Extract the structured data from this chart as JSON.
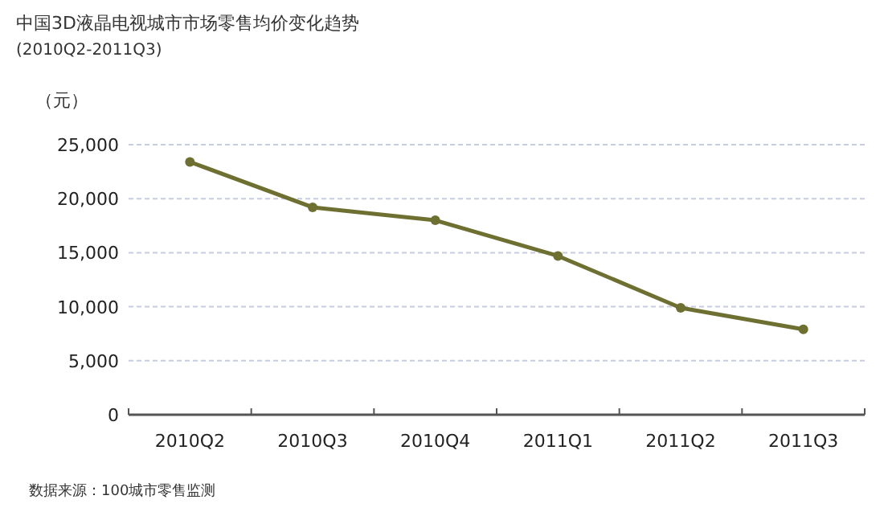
{
  "chart_data": {
    "type": "line",
    "title": "中国3D液晶电视城市市场零售均价变化趋势",
    "subtitle": "(2010Q2-2011Q3)",
    "ylabel": "（元）",
    "categories": [
      "2010Q2",
      "2010Q3",
      "2010Q4",
      "2011Q1",
      "2011Q2",
      "2011Q3"
    ],
    "series": [
      {
        "color": "#6e7031",
        "values": [
          23400,
          19200,
          18000,
          14700,
          9900,
          7900
        ]
      }
    ],
    "ylim": [
      0,
      25000
    ],
    "yticks": [
      {
        "value": 0,
        "label": "0"
      },
      {
        "value": 5000,
        "label": "5,000"
      },
      {
        "value": 10000,
        "label": "10,000"
      },
      {
        "value": 15000,
        "label": "15,000"
      },
      {
        "value": 20000,
        "label": "20,000"
      },
      {
        "value": 25000,
        "label": "25,000"
      }
    ],
    "grid": "y",
    "marker": "circle",
    "line_style": "solid",
    "annotations": [
      "数据来源：100城市零售监测"
    ]
  }
}
